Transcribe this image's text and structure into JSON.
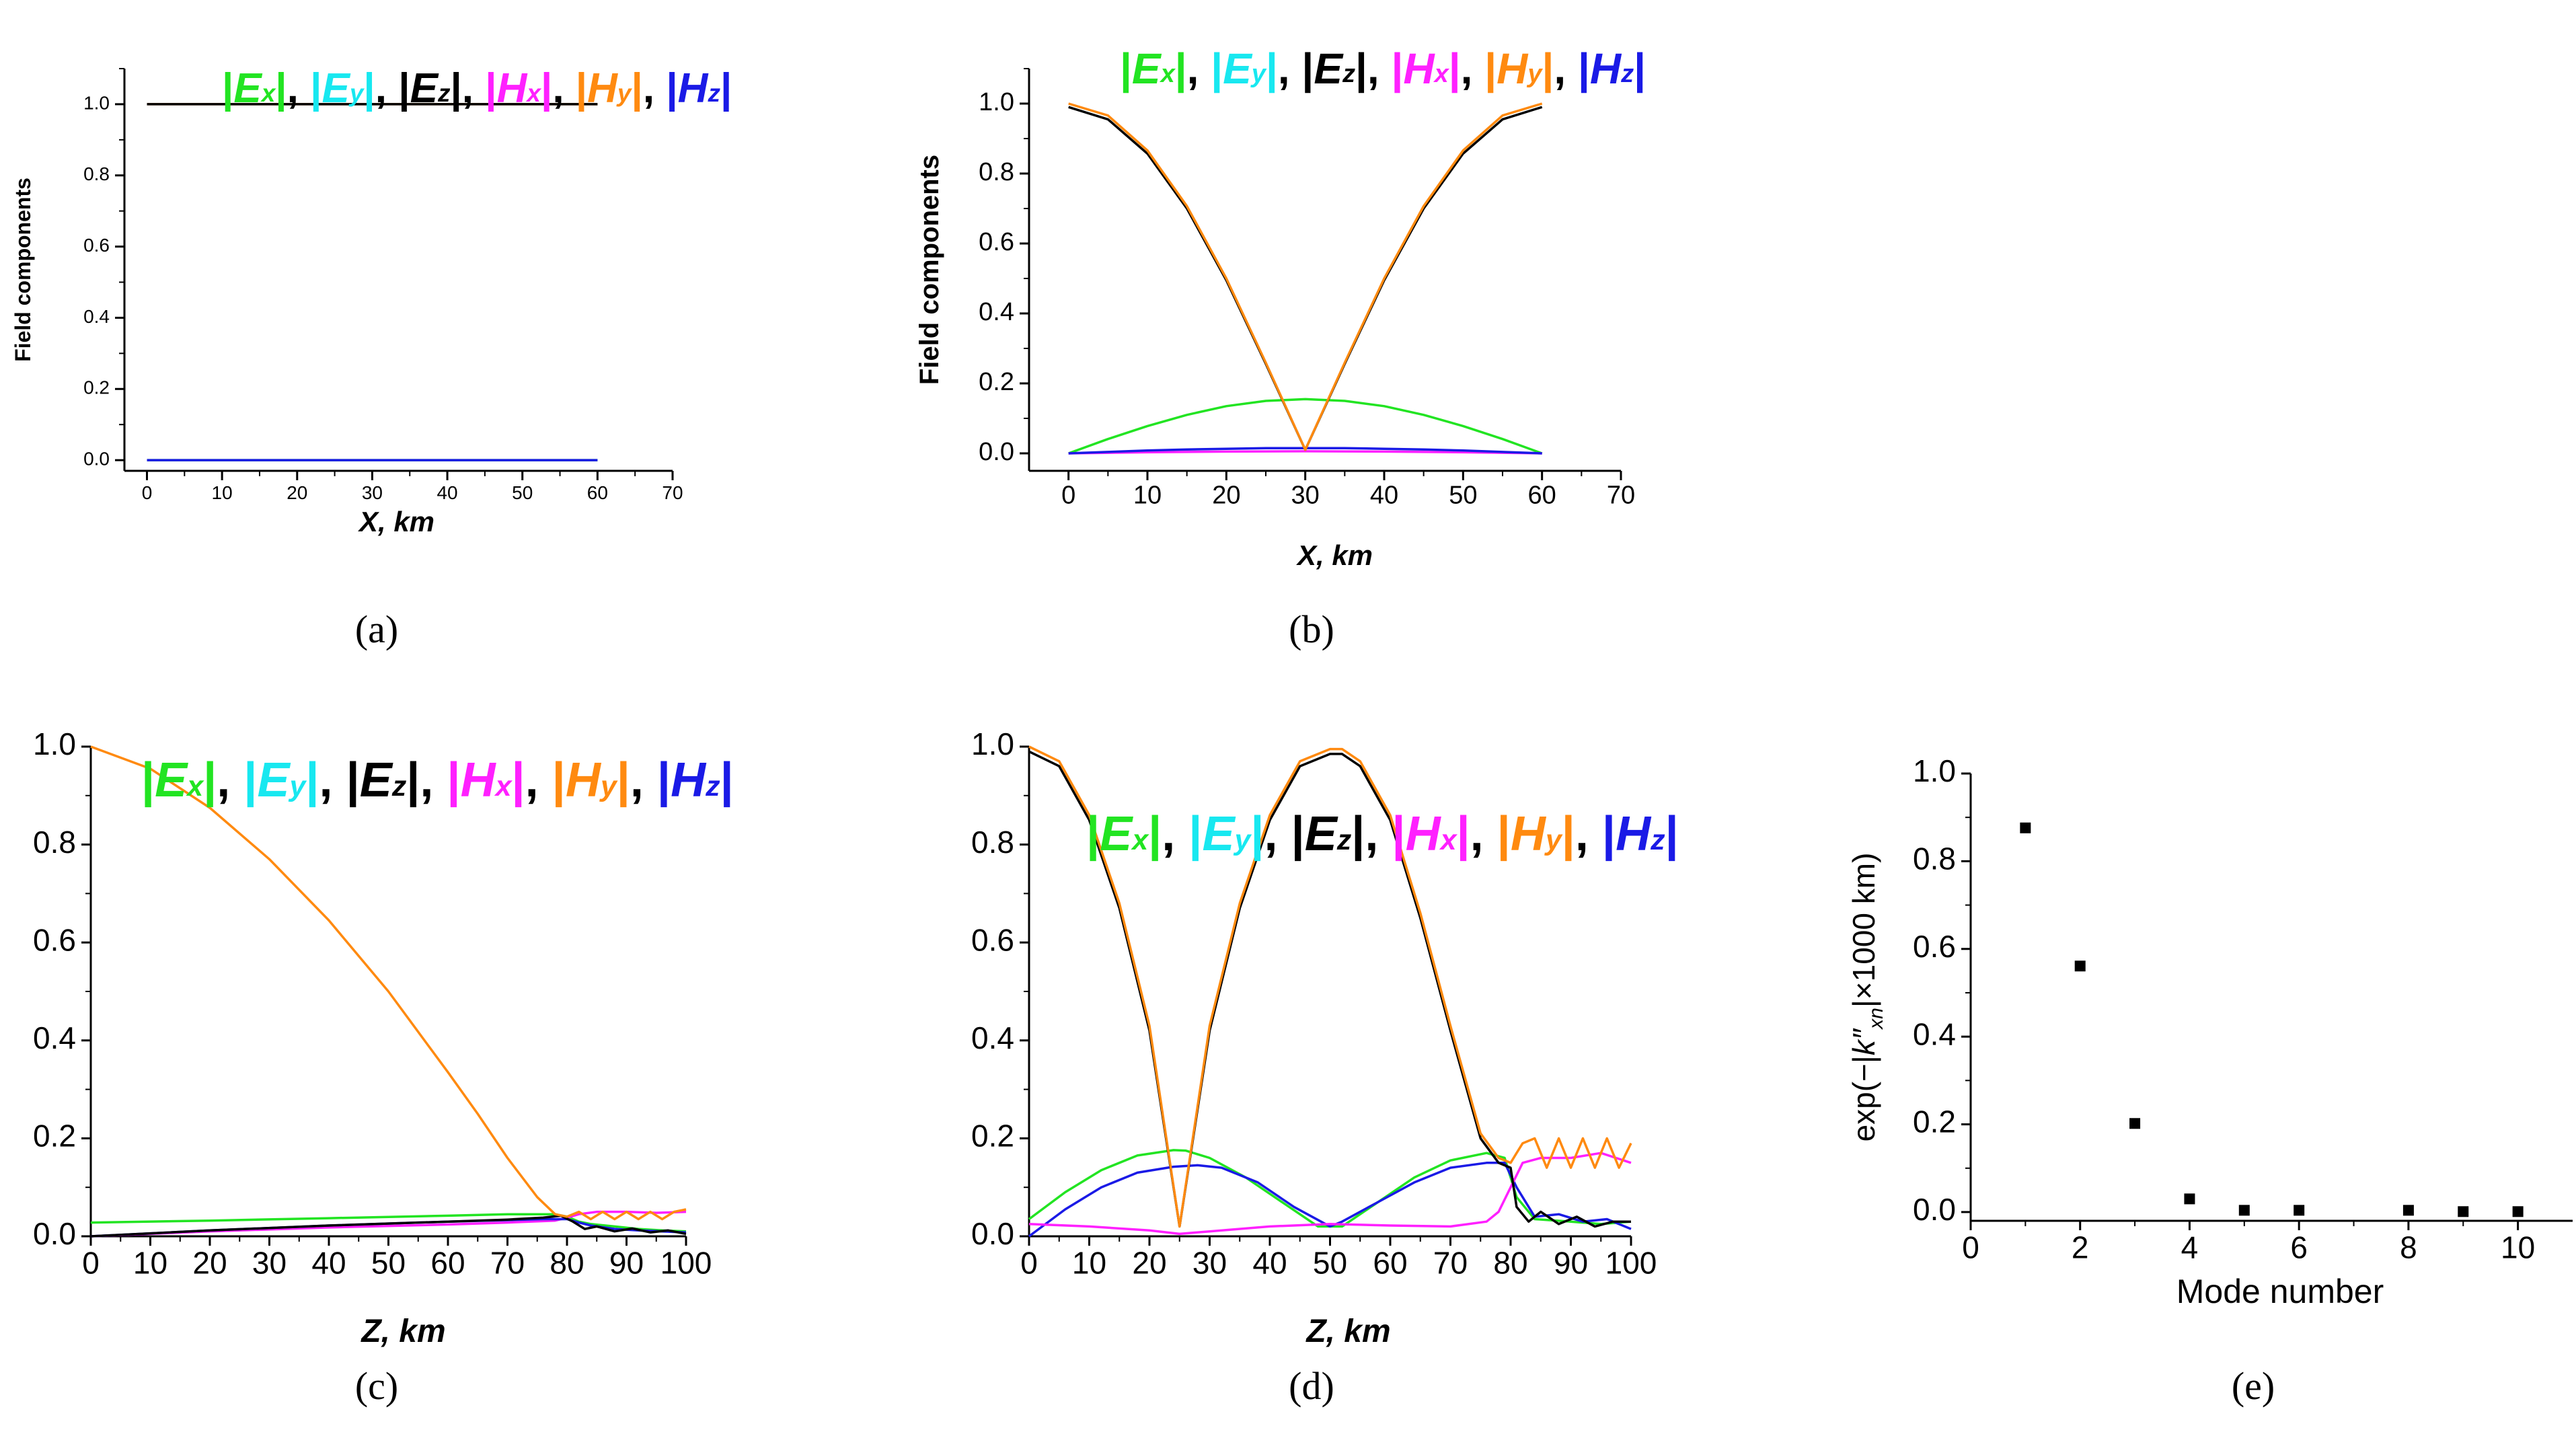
{
  "legend": {
    "entries": [
      {
        "sym": "E",
        "sub": "x",
        "color": "#22e422"
      },
      {
        "sym": "E",
        "sub": "y",
        "color": "#18e8f0"
      },
      {
        "sym": "E",
        "sub": "z",
        "color": "#000000"
      },
      {
        "sym": "H",
        "sub": "x",
        "color": "#ff20ff"
      },
      {
        "sym": "H",
        "sub": "y",
        "color": "#ff8a10"
      },
      {
        "sym": "H",
        "sub": "z",
        "color": "#1a1ae6"
      }
    ]
  },
  "chart_data": [
    {
      "id": "a",
      "panel_label": "(a)",
      "type": "line",
      "xlabel": "X, km",
      "ylabel": "Field components",
      "xlim": [
        -3,
        70
      ],
      "ylim": [
        -0.03,
        1.1
      ],
      "xticks": [
        "0",
        "10",
        "20",
        "30",
        "40",
        "50",
        "60",
        "70"
      ],
      "yticks": [
        "0.0",
        "0.2",
        "0.4",
        "0.6",
        "0.8",
        "1.0"
      ],
      "series": [
        {
          "name": "|Hy|",
          "color": "#ff8a10",
          "x": [
            0,
            60
          ],
          "y": [
            1.0,
            1.0
          ]
        },
        {
          "name": "|Ez|",
          "color": "#000000",
          "x": [
            0,
            60
          ],
          "y": [
            1.0,
            1.0
          ]
        },
        {
          "name": "|Ex|",
          "color": "#22e422",
          "x": [
            0,
            60
          ],
          "y": [
            0.0,
            0.0
          ]
        },
        {
          "name": "|Hz|",
          "color": "#1a1ae6",
          "x": [
            0,
            60
          ],
          "y": [
            0.0,
            0.0
          ]
        }
      ]
    },
    {
      "id": "b",
      "panel_label": "(b)",
      "type": "line",
      "xlabel": "X, km",
      "ylabel": "Field components",
      "xlim": [
        -5,
        70
      ],
      "ylim": [
        -0.05,
        1.1
      ],
      "xticks": [
        "0",
        "10",
        "20",
        "30",
        "40",
        "50",
        "60",
        "70"
      ],
      "yticks": [
        "0.0",
        "0.2",
        "0.4",
        "0.6",
        "0.8",
        "1.0"
      ],
      "series": [
        {
          "name": "|Ex|",
          "color": "#22e422",
          "x": [
            0,
            5,
            10,
            15,
            20,
            25,
            30,
            35,
            40,
            45,
            50,
            55,
            60
          ],
          "y": [
            0.0,
            0.041,
            0.078,
            0.11,
            0.135,
            0.15,
            0.155,
            0.15,
            0.135,
            0.11,
            0.078,
            0.041,
            0.0
          ]
        },
        {
          "name": "|Hx|",
          "color": "#ff20ff",
          "x": [
            0,
            10,
            20,
            30,
            40,
            50,
            60
          ],
          "y": [
            0.0,
            0.003,
            0.005,
            0.006,
            0.005,
            0.003,
            0.0
          ]
        },
        {
          "name": "|Hz|",
          "color": "#1a1ae6",
          "x": [
            0,
            5,
            10,
            15,
            20,
            25,
            30,
            35,
            40,
            45,
            50,
            55,
            60
          ],
          "y": [
            0.0,
            0.004,
            0.008,
            0.011,
            0.013,
            0.015,
            0.015,
            0.015,
            0.013,
            0.011,
            0.008,
            0.004,
            0.0
          ]
        },
        {
          "name": "|Ez|",
          "color": "#000000",
          "x": [
            0,
            5,
            10,
            15,
            20,
            25,
            30,
            35,
            40,
            45,
            50,
            55,
            60
          ],
          "y": [
            0.99,
            0.955,
            0.857,
            0.7,
            0.495,
            0.256,
            0.01,
            0.256,
            0.495,
            0.7,
            0.857,
            0.955,
            0.99
          ]
        },
        {
          "name": "|Hy|",
          "color": "#ff8a10",
          "x": [
            0,
            5,
            10,
            15,
            20,
            25,
            30,
            35,
            40,
            45,
            50,
            55,
            60
          ],
          "y": [
            1.0,
            0.966,
            0.866,
            0.707,
            0.5,
            0.259,
            0.01,
            0.259,
            0.5,
            0.707,
            0.866,
            0.966,
            1.0
          ]
        }
      ]
    },
    {
      "id": "c",
      "panel_label": "(c)",
      "type": "line",
      "xlabel": "Z, km",
      "ylabel": "",
      "xlim": [
        0,
        100
      ],
      "ylim": [
        0,
        1.0
      ],
      "xticks": [
        "0",
        "10",
        "20",
        "30",
        "40",
        "50",
        "60",
        "70",
        "80",
        "90",
        "100"
      ],
      "yticks": [
        "0.0",
        "0.2",
        "0.4",
        "0.6",
        "0.8",
        "1.0"
      ],
      "series": [
        {
          "name": "|Ex|",
          "color": "#22e422",
          "x": [
            0,
            20,
            40,
            60,
            70,
            78,
            80,
            82,
            84,
            88,
            92,
            96,
            100
          ],
          "y": [
            0.028,
            0.032,
            0.037,
            0.042,
            0.045,
            0.045,
            0.04,
            0.03,
            0.025,
            0.02,
            0.015,
            0.012,
            0.01
          ]
        },
        {
          "name": "|Hx|",
          "color": "#ff20ff",
          "x": [
            0,
            20,
            40,
            60,
            70,
            78,
            80,
            82,
            85,
            90,
            95,
            100
          ],
          "y": [
            0.0,
            0.01,
            0.018,
            0.024,
            0.028,
            0.032,
            0.038,
            0.045,
            0.05,
            0.05,
            0.048,
            0.05
          ]
        },
        {
          "name": "|Hz|",
          "color": "#1a1ae6",
          "x": [
            0,
            20,
            40,
            60,
            70,
            76,
            80,
            82,
            84,
            88,
            92,
            96,
            100
          ],
          "y": [
            0.0,
            0.012,
            0.022,
            0.03,
            0.033,
            0.035,
            0.035,
            0.028,
            0.022,
            0.015,
            0.012,
            0.01,
            0.008
          ]
        },
        {
          "name": "|Ez|",
          "color": "#000000",
          "x": [
            0,
            20,
            40,
            60,
            70,
            76,
            79,
            81,
            83,
            85,
            88,
            91,
            94,
            97,
            100
          ],
          "y": [
            0.0,
            0.012,
            0.022,
            0.03,
            0.034,
            0.038,
            0.042,
            0.03,
            0.015,
            0.02,
            0.01,
            0.016,
            0.008,
            0.012,
            0.005
          ]
        },
        {
          "name": "|Hy|",
          "color": "#ff8a10",
          "x": [
            0,
            10,
            20,
            30,
            40,
            50,
            60,
            65,
            70,
            75,
            78,
            80,
            82,
            84,
            86,
            88,
            90,
            92,
            94,
            96,
            98,
            100
          ],
          "y": [
            1.0,
            0.955,
            0.875,
            0.77,
            0.645,
            0.5,
            0.335,
            0.25,
            0.16,
            0.08,
            0.045,
            0.04,
            0.05,
            0.035,
            0.05,
            0.035,
            0.05,
            0.035,
            0.05,
            0.035,
            0.05,
            0.055
          ]
        }
      ]
    },
    {
      "id": "d",
      "panel_label": "(d)",
      "type": "line",
      "xlabel": "Z, km",
      "ylabel": "",
      "xlim": [
        0,
        100
      ],
      "ylim": [
        0,
        1.0
      ],
      "xticks": [
        "0",
        "10",
        "20",
        "30",
        "40",
        "50",
        "60",
        "70",
        "80",
        "90",
        "100"
      ],
      "yticks": [
        "0.0",
        "0.2",
        "0.4",
        "0.6",
        "0.8",
        "1.0"
      ],
      "series": [
        {
          "name": "|Ex|",
          "color": "#22e422",
          "x": [
            0,
            6,
            12,
            18,
            24,
            26,
            30,
            36,
            42,
            48,
            52,
            58,
            64,
            70,
            76,
            79,
            81,
            84,
            90,
            95,
            100
          ],
          "y": [
            0.035,
            0.09,
            0.135,
            0.165,
            0.176,
            0.175,
            0.16,
            0.12,
            0.07,
            0.02,
            0.02,
            0.07,
            0.12,
            0.155,
            0.17,
            0.16,
            0.08,
            0.035,
            0.03,
            0.025,
            0.03
          ]
        },
        {
          "name": "|Hz|",
          "color": "#1a1ae6",
          "x": [
            0,
            6,
            12,
            18,
            24,
            28,
            32,
            38,
            44,
            50,
            52,
            58,
            64,
            70,
            76,
            79,
            81,
            84,
            88,
            92,
            96,
            100
          ],
          "y": [
            0.0,
            0.055,
            0.1,
            0.13,
            0.142,
            0.145,
            0.14,
            0.11,
            0.06,
            0.02,
            0.03,
            0.07,
            0.11,
            0.14,
            0.15,
            0.15,
            0.1,
            0.04,
            0.045,
            0.03,
            0.035,
            0.015
          ]
        },
        {
          "name": "|Hx|",
          "color": "#ff20ff",
          "x": [
            0,
            10,
            20,
            25,
            30,
            40,
            50,
            60,
            70,
            76,
            78,
            80,
            82,
            85,
            90,
            95,
            100
          ],
          "y": [
            0.025,
            0.02,
            0.012,
            0.005,
            0.01,
            0.02,
            0.025,
            0.022,
            0.02,
            0.03,
            0.05,
            0.1,
            0.15,
            0.16,
            0.16,
            0.17,
            0.15
          ]
        },
        {
          "name": "|Ez|",
          "color": "#000000",
          "x": [
            0,
            5,
            10,
            15,
            20,
            25,
            30,
            35,
            40,
            45,
            50,
            52,
            55,
            60,
            65,
            70,
            75,
            78,
            80,
            81,
            83,
            85,
            88,
            91,
            94,
            97,
            100
          ],
          "y": [
            0.99,
            0.96,
            0.85,
            0.67,
            0.42,
            0.02,
            0.42,
            0.67,
            0.85,
            0.96,
            0.985,
            0.985,
            0.96,
            0.85,
            0.65,
            0.42,
            0.2,
            0.15,
            0.14,
            0.06,
            0.03,
            0.05,
            0.025,
            0.04,
            0.02,
            0.03,
            0.03
          ]
        },
        {
          "name": "|Hy|",
          "color": "#ff8a10",
          "x": [
            0,
            5,
            10,
            15,
            20,
            25,
            30,
            35,
            40,
            45,
            50,
            52,
            55,
            60,
            65,
            70,
            75,
            78,
            80,
            81,
            82,
            84,
            86,
            88,
            90,
            92,
            94,
            96,
            98,
            100
          ],
          "y": [
            1.0,
            0.97,
            0.86,
            0.68,
            0.43,
            0.02,
            0.43,
            0.68,
            0.86,
            0.97,
            0.995,
            0.995,
            0.97,
            0.86,
            0.66,
            0.43,
            0.21,
            0.16,
            0.15,
            0.17,
            0.19,
            0.2,
            0.14,
            0.2,
            0.14,
            0.2,
            0.14,
            0.2,
            0.14,
            0.19
          ]
        }
      ]
    },
    {
      "id": "e",
      "panel_label": "(e)",
      "type": "scatter",
      "xlabel": "Mode number",
      "ylabel": "exp(−|k''xn|×1000 km)",
      "ylabel_parts": {
        "pre": "exp(−|",
        "k": "k",
        "primes": "″",
        "sub": "xn",
        "post": "|×1000 km)"
      },
      "xlim": [
        0,
        11
      ],
      "ylim": [
        -0.02,
        1.0
      ],
      "xticks": [
        "0",
        "2",
        "4",
        "6",
        "8",
        "10"
      ],
      "yticks": [
        "0.0",
        "0.2",
        "0.4",
        "0.6",
        "0.8",
        "1.0"
      ],
      "x": [
        1,
        2,
        3,
        4,
        5,
        6,
        8,
        9,
        10
      ],
      "y": [
        0.876,
        0.561,
        0.202,
        0.03,
        0.004,
        0.004,
        0.004,
        0.001,
        0.001
      ]
    }
  ]
}
